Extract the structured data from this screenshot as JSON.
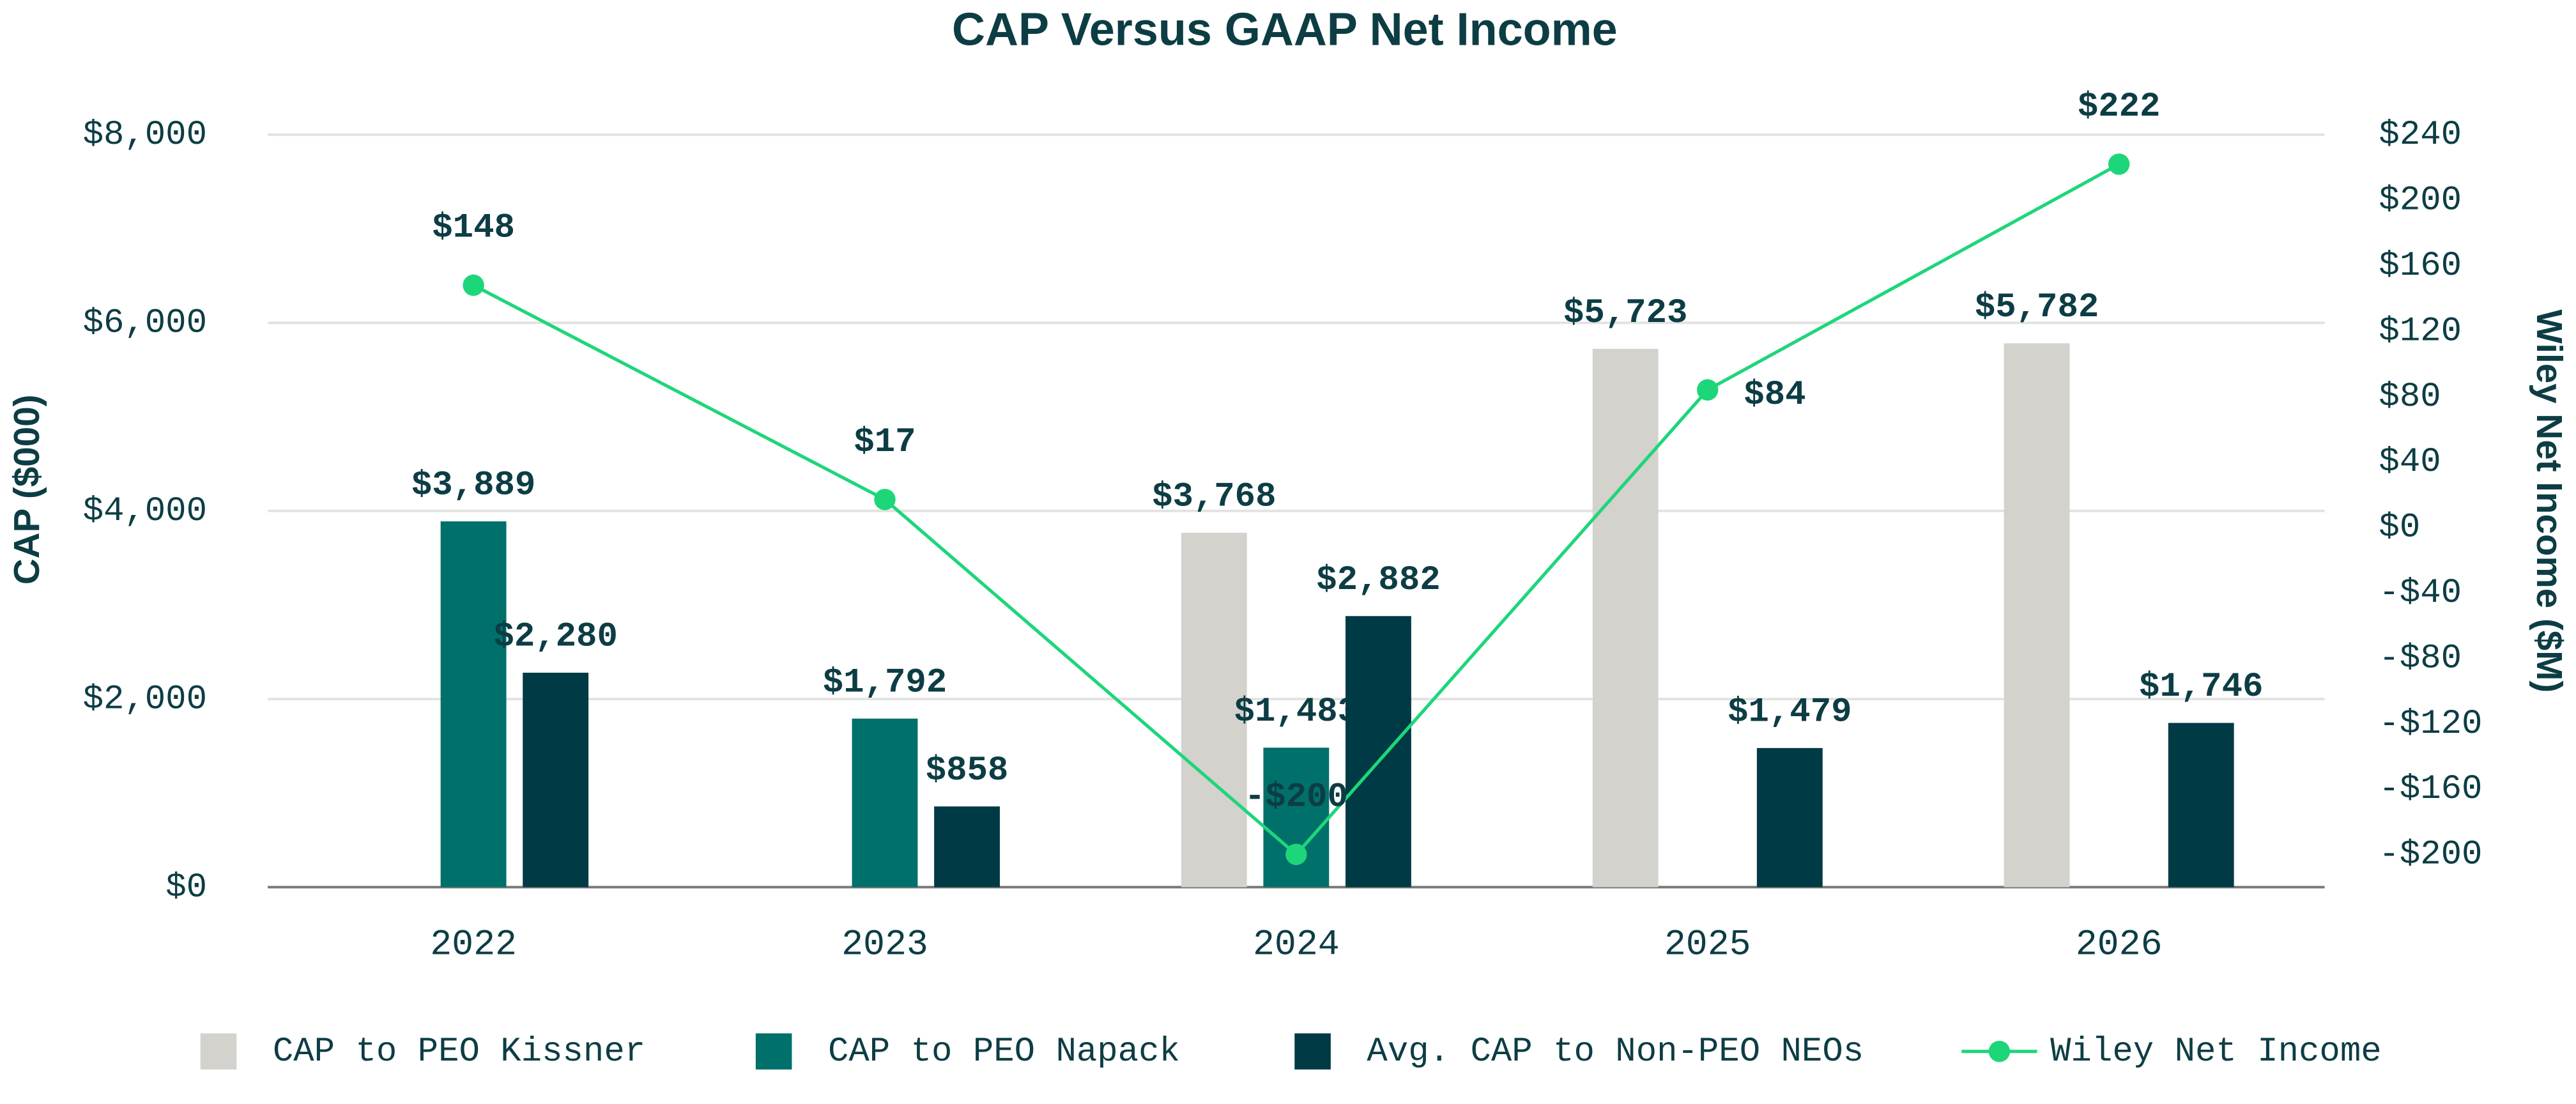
{
  "chart_data": {
    "type": "bar",
    "title": "CAP Versus GAAP Net Income",
    "y_label": "CAP ($000)",
    "y2_label": "Wiley Net Income ($M)",
    "categories": [
      "2022",
      "2023",
      "2024",
      "2025",
      "2026"
    ],
    "ylim": [
      0,
      8000
    ],
    "yticks": [
      {
        "value": 0,
        "label": "$0"
      },
      {
        "value": 2000,
        "label": "$2,000"
      },
      {
        "value": 4000,
        "label": "$4,000"
      },
      {
        "value": 6000,
        "label": "$6,000"
      },
      {
        "value": 8000,
        "label": "$8,000"
      }
    ],
    "y2lim": [
      -220,
      240
    ],
    "y2ticks": [
      {
        "value": -200,
        "label": "-$200"
      },
      {
        "value": -160,
        "label": "-$160"
      },
      {
        "value": -120,
        "label": "-$120"
      },
      {
        "value": -80,
        "label": "-$80"
      },
      {
        "value": -40,
        "label": "-$40"
      },
      {
        "value": 0,
        "label": "$0"
      },
      {
        "value": 40,
        "label": "$40"
      },
      {
        "value": 80,
        "label": "$80"
      },
      {
        "value": 120,
        "label": "$120"
      },
      {
        "value": 160,
        "label": "$160"
      },
      {
        "value": 200,
        "label": "$200"
      },
      {
        "value": 240,
        "label": "$240"
      }
    ],
    "grid": true,
    "legend": "bottom",
    "series": [
      {
        "name": "CAP to PEO Kissner",
        "type": "bar",
        "color": "#d3d2cd",
        "values": [
          null,
          null,
          3768,
          5723,
          5782
        ],
        "value_labels": [
          null,
          null,
          "$3,768",
          "$5,723",
          "$5,782"
        ]
      },
      {
        "name": "CAP to PEO Napack",
        "type": "bar",
        "color": "#00706a",
        "values": [
          3889,
          1792,
          1483,
          null,
          null
        ],
        "value_labels": [
          "$3,889",
          "$1,792",
          "$1,483",
          null,
          null
        ]
      },
      {
        "name": "Avg. CAP to Non-PEO NEOs",
        "type": "bar",
        "color": "#003a45",
        "values": [
          2280,
          858,
          2882,
          1479,
          1746
        ],
        "value_labels": [
          "$2,280",
          "$858",
          "$2,882",
          "$1,479",
          "$1,746"
        ]
      },
      {
        "name": "Wiley Net Income",
        "type": "line",
        "axis": "y2",
        "color": "#1ed67a",
        "values": [
          148,
          17,
          -200,
          84,
          222
        ],
        "value_labels": [
          "$148",
          "$17",
          "-$200",
          "$84",
          "$222"
        ]
      }
    ]
  }
}
